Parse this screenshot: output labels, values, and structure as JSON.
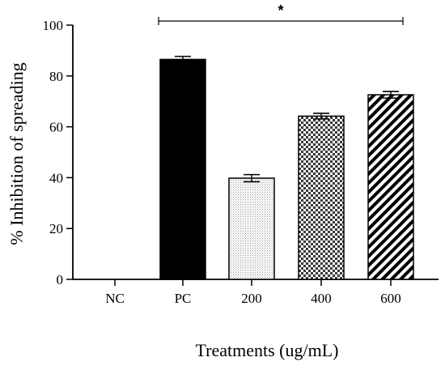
{
  "chart_data": {
    "type": "bar",
    "title": "",
    "xlabel": "Treatments (ug/mL)",
    "ylabel": "% Inhibition of spreading",
    "ylim": [
      0,
      100
    ],
    "yticks": [
      0,
      20,
      40,
      60,
      80,
      100
    ],
    "categories": [
      "NC",
      "PC",
      "200",
      "400",
      "600"
    ],
    "values": [
      0,
      86.5,
      39.8,
      64.2,
      72.6
    ],
    "errors": [
      0,
      1.2,
      1.4,
      1.1,
      1.3
    ],
    "patterns": [
      "none",
      "solid-black",
      "fine-dots",
      "checkerboard",
      "diagonal-stripes"
    ],
    "significance": {
      "label": "*",
      "from": "PC",
      "to": "600"
    },
    "grid": false,
    "legend": "none"
  }
}
